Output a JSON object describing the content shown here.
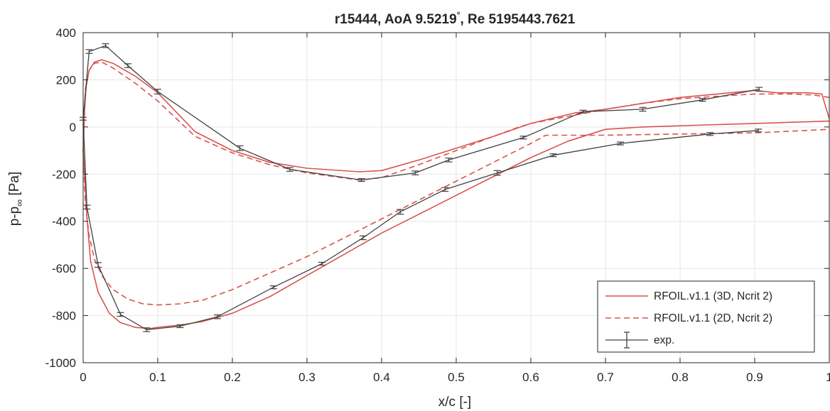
{
  "chart_data": {
    "type": "line",
    "title": "r15444, AoA 9.5219°, Re 5195443.7621",
    "title_parts": {
      "main": "r15444, AoA 9.5219",
      "degree": "°",
      "tail": ", Re 5195443.7621"
    },
    "xlabel": "x/c [-]",
    "ylabel": "p-p∞ [Pa]",
    "ylabel_parts": {
      "main": "p-p",
      "sub": "∞",
      "unit": " [Pa]"
    },
    "xlim": [
      0,
      1
    ],
    "ylim": [
      -1000,
      400
    ],
    "xticks": [
      0,
      0.1,
      0.2,
      0.3,
      0.4,
      0.5,
      0.6,
      0.7,
      0.8,
      0.9,
      1
    ],
    "yticks": [
      -1000,
      -800,
      -600,
      -400,
      -200,
      0,
      200,
      400
    ],
    "grid": true,
    "legend_position": "bottom-right",
    "colors": {
      "rfoil": "#d9534f",
      "exp": "#404040",
      "grid": "#e6e6e6",
      "axis": "#262626"
    },
    "series": [
      {
        "name": "RFOIL.v1.1 (3D, Ncrit 2)",
        "style": "solid",
        "x": [
          1.0,
          0.99,
          0.97,
          0.93,
          0.9,
          0.85,
          0.8,
          0.75,
          0.7,
          0.66,
          0.6,
          0.55,
          0.5,
          0.45,
          0.4,
          0.37,
          0.3,
          0.25,
          0.2,
          0.15,
          0.1,
          0.07,
          0.04,
          0.025,
          0.015,
          0.008,
          0.004,
          0.002,
          0.0,
          0.002,
          0.005,
          0.01,
          0.02,
          0.035,
          0.05,
          0.07,
          0.09,
          0.1,
          0.13,
          0.16,
          0.2,
          0.25,
          0.3,
          0.35,
          0.4,
          0.45,
          0.5,
          0.55,
          0.6,
          0.65,
          0.7,
          0.75,
          0.8,
          0.85,
          0.9,
          0.95,
          1.0
        ],
        "y": [
          35,
          140,
          145,
          145,
          155,
          140,
          125,
          100,
          75,
          60,
          15,
          -40,
          -90,
          -140,
          -185,
          -190,
          -175,
          -150,
          -100,
          -20,
          145,
          215,
          270,
          285,
          275,
          240,
          170,
          80,
          -100,
          -200,
          -380,
          -570,
          -700,
          -790,
          -830,
          -850,
          -855,
          -850,
          -840,
          -825,
          -790,
          -720,
          -630,
          -540,
          -450,
          -370,
          -290,
          -210,
          -130,
          -60,
          -10,
          0,
          5,
          10,
          15,
          20,
          25
        ]
      },
      {
        "name": "RFOIL.v1.1 (2D, Ncrit 2)",
        "style": "dashed",
        "x": [
          1.0,
          0.98,
          0.95,
          0.9,
          0.85,
          0.8,
          0.75,
          0.7,
          0.65,
          0.6,
          0.58,
          0.55,
          0.5,
          0.45,
          0.4,
          0.37,
          0.3,
          0.25,
          0.2,
          0.15,
          0.1,
          0.07,
          0.04,
          0.025,
          0.015,
          0.008,
          0.003,
          0.0,
          0.003,
          0.008,
          0.015,
          0.025,
          0.04,
          0.06,
          0.08,
          0.1,
          0.13,
          0.16,
          0.2,
          0.25,
          0.3,
          0.35,
          0.4,
          0.45,
          0.5,
          0.55,
          0.6,
          0.62,
          0.7,
          0.8,
          0.9,
          1.0
        ],
        "y": [
          125,
          135,
          140,
          140,
          130,
          120,
          100,
          75,
          45,
          15,
          -5,
          -40,
          -100,
          -160,
          -215,
          -225,
          -195,
          -160,
          -110,
          -40,
          110,
          185,
          250,
          275,
          270,
          240,
          160,
          -100,
          -330,
          -460,
          -560,
          -630,
          -690,
          -730,
          -750,
          -755,
          -750,
          -735,
          -690,
          -620,
          -550,
          -470,
          -390,
          -310,
          -230,
          -150,
          -70,
          -35,
          -35,
          -30,
          -25,
          -10
        ]
      },
      {
        "name": "exp.",
        "style": "errorbar",
        "x": [
          0.906,
          0.83,
          0.75,
          0.67,
          0.59,
          0.49,
          0.445,
          0.373,
          0.277,
          0.21,
          0.1,
          0.06,
          0.03,
          0.008,
          0.0,
          0.005,
          0.02,
          0.05,
          0.085,
          0.13,
          0.18,
          0.255,
          0.32,
          0.375,
          0.425,
          0.485,
          0.555,
          0.63,
          0.72,
          0.84,
          0.905
        ],
        "y": [
          160,
          115,
          75,
          65,
          -45,
          -140,
          -195,
          -225,
          -180,
          -90,
          150,
          260,
          345,
          320,
          35,
          -340,
          -585,
          -795,
          -860,
          -845,
          -805,
          -680,
          -580,
          -470,
          -360,
          -265,
          -195,
          -120,
          -70,
          -30,
          -15
        ],
        "err": [
          8,
          6,
          8,
          6,
          6,
          8,
          8,
          6,
          8,
          10,
          10,
          8,
          8,
          8,
          6,
          8,
          10,
          8,
          8,
          6,
          8,
          6,
          6,
          8,
          10,
          8,
          10,
          6,
          6,
          6,
          6
        ]
      }
    ]
  }
}
